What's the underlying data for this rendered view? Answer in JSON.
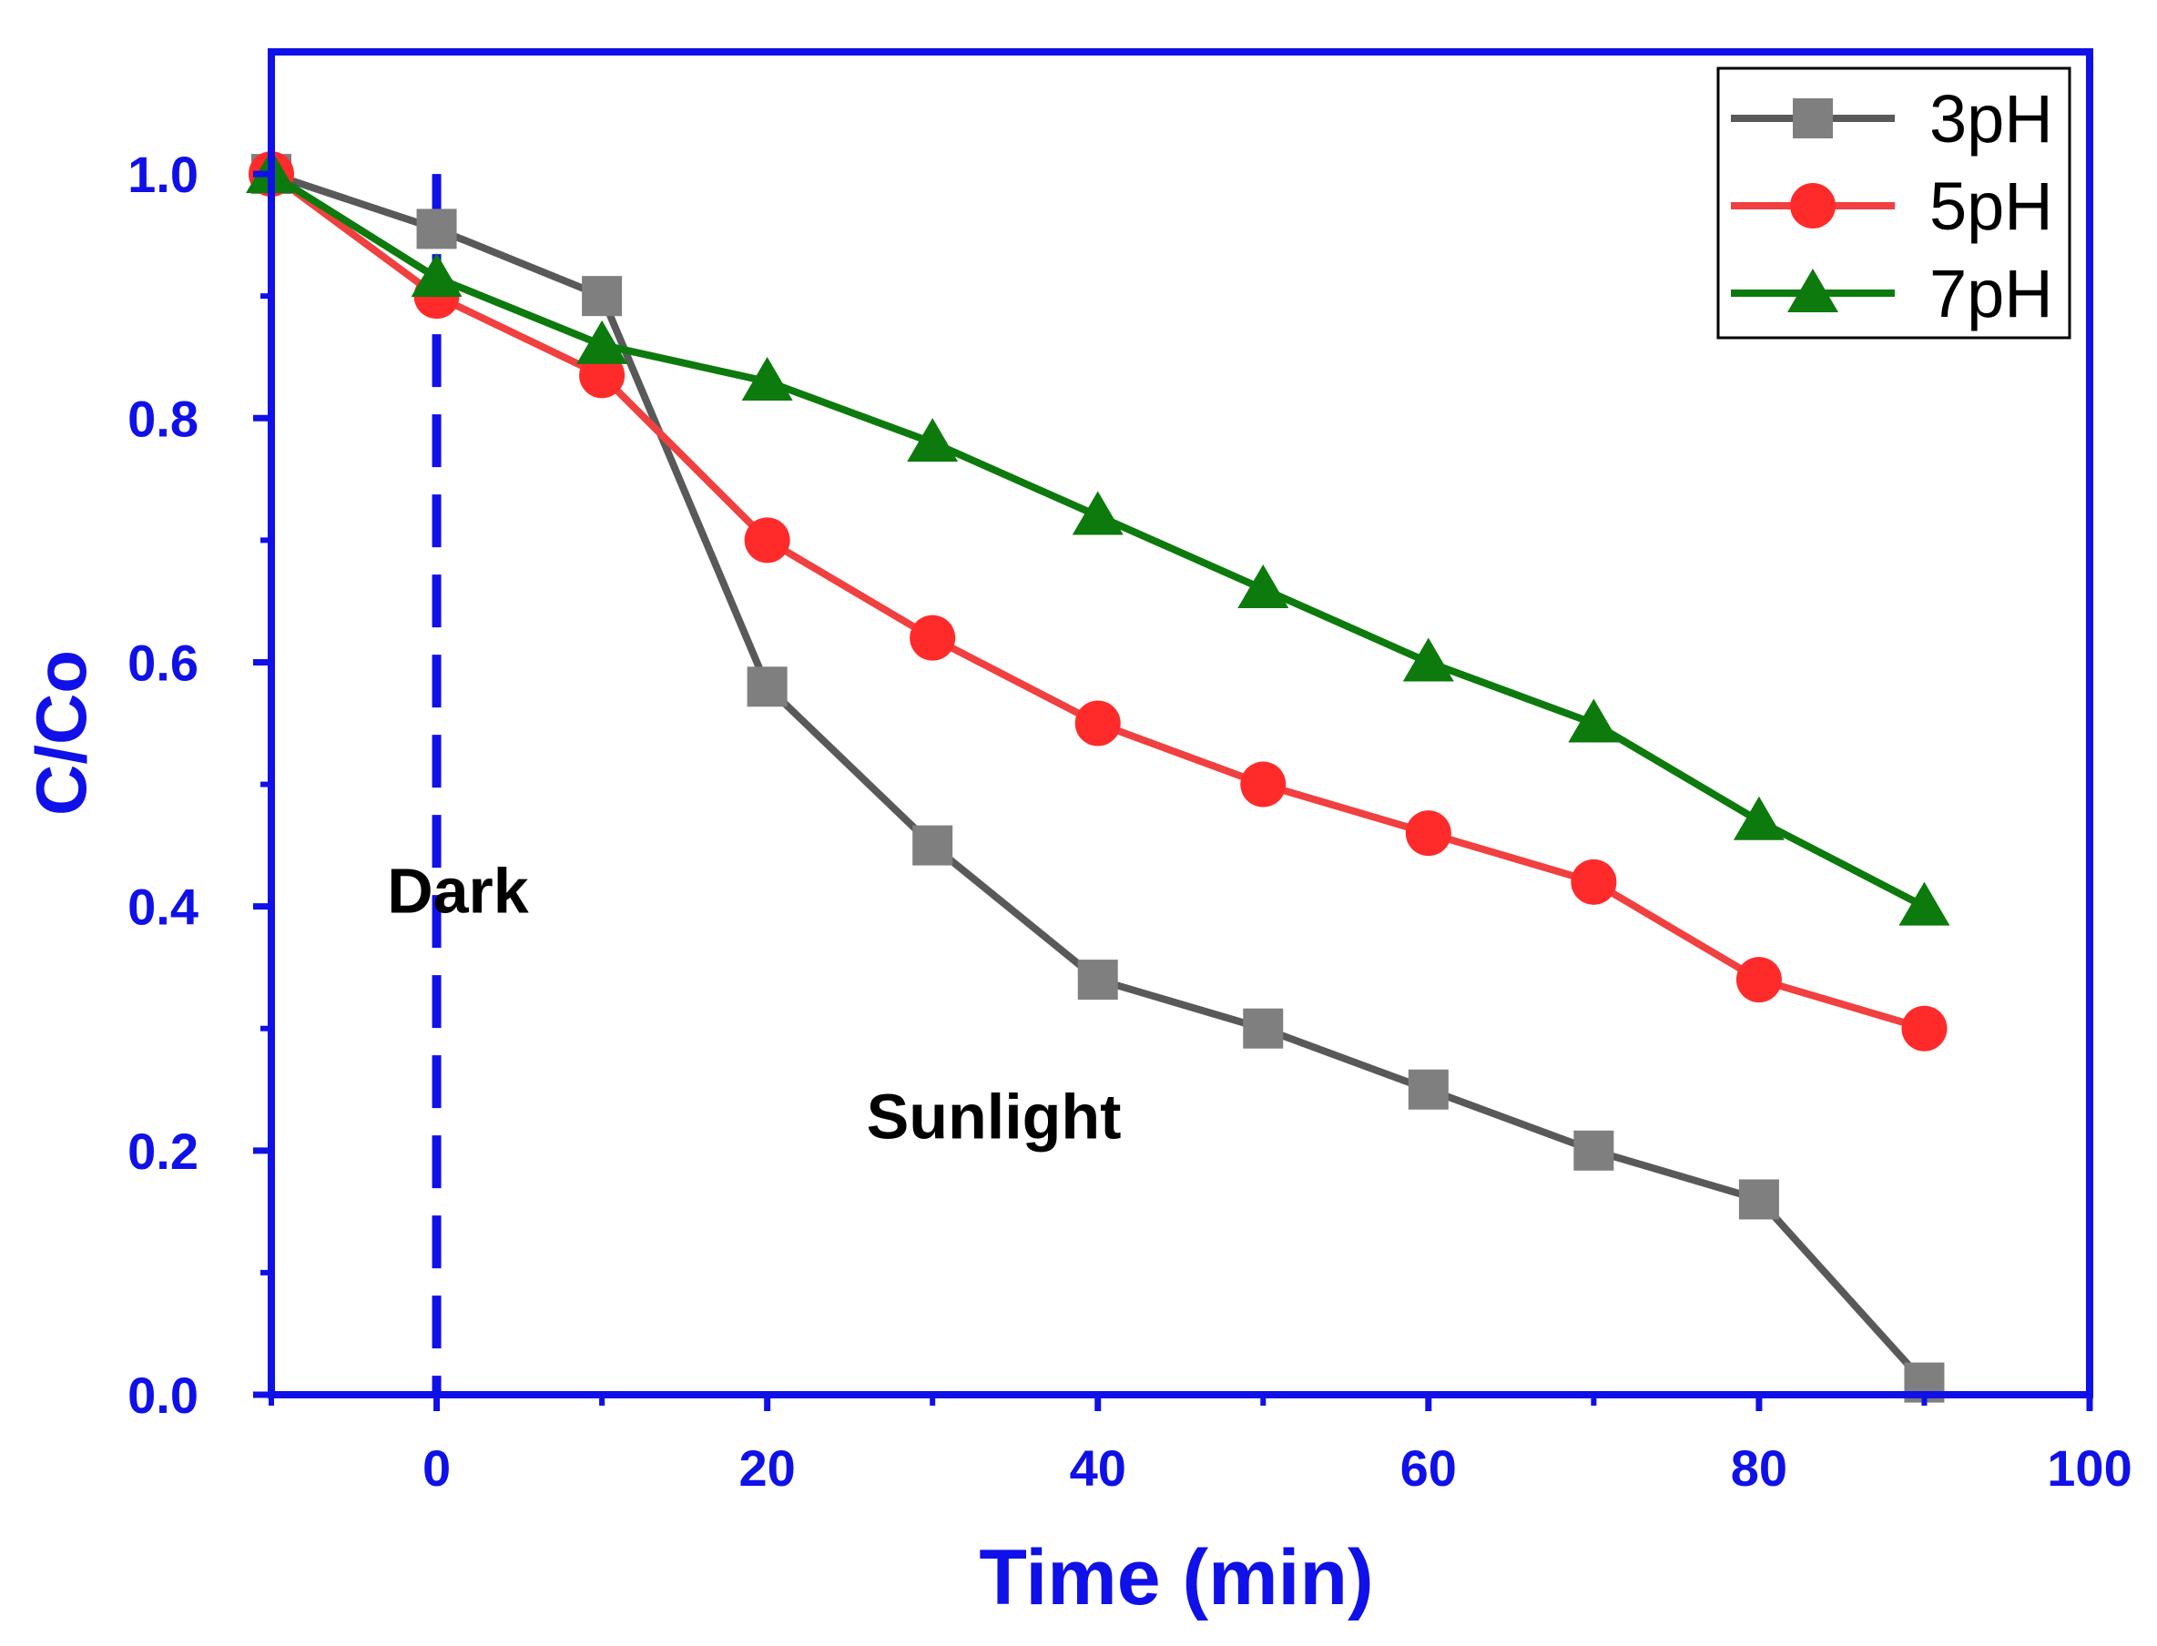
{
  "chart_data": {
    "type": "line",
    "title": "",
    "xlabel": "Time (min)",
    "ylabel": "C/Co",
    "xlim": [
      -10,
      100
    ],
    "ylim": [
      0,
      1.1
    ],
    "x_ticks": [
      0,
      20,
      40,
      60,
      80,
      100
    ],
    "x_tick_labels": [
      "0",
      "20",
      "40",
      "60",
      "80",
      "100"
    ],
    "x_minor_ticks": [
      -10,
      10,
      30,
      50,
      70,
      90
    ],
    "y_ticks": [
      0,
      0.2,
      0.4,
      0.6,
      0.8,
      1.0
    ],
    "y_tick_labels": [
      "0.0",
      "0.2",
      "0.4",
      "0.6",
      "0.8",
      "1.0"
    ],
    "y_minor_ticks": [
      0.1,
      0.3,
      0.5,
      0.7,
      0.9
    ],
    "x": [
      -10,
      0,
      10,
      20,
      30,
      40,
      50,
      60,
      70,
      80,
      90
    ],
    "series": [
      {
        "name": "3pH",
        "marker": "square",
        "color": "#595959",
        "marker_color": "#7f7f7f",
        "values": [
          1.0,
          0.955,
          0.9,
          0.58,
          0.45,
          0.34,
          0.3,
          0.25,
          0.2,
          0.16,
          0.01
        ]
      },
      {
        "name": "5pH",
        "marker": "circle",
        "color": "#f04040",
        "marker_color": "#ff2b2b",
        "values": [
          1.0,
          0.9,
          0.835,
          0.7,
          0.62,
          0.55,
          0.5,
          0.46,
          0.42,
          0.34,
          0.3
        ]
      },
      {
        "name": "7pH",
        "marker": "triangle",
        "color": "#0d7a0d",
        "marker_color": "#0d7a0d",
        "values": [
          1.0,
          0.915,
          0.86,
          0.83,
          0.78,
          0.72,
          0.66,
          0.6,
          0.55,
          0.47,
          0.4
        ]
      }
    ],
    "divider": {
      "x": 0,
      "color": "#1010e8",
      "style": "dashed"
    },
    "annotations": [
      {
        "text": "Dark",
        "x": -3,
        "y": 0.395
      },
      {
        "text": "Sunlight",
        "x": 26,
        "y": 0.21
      }
    ],
    "legend_position": "top-right",
    "axis_color": "#1010e8",
    "label_color": "#1010e8"
  }
}
